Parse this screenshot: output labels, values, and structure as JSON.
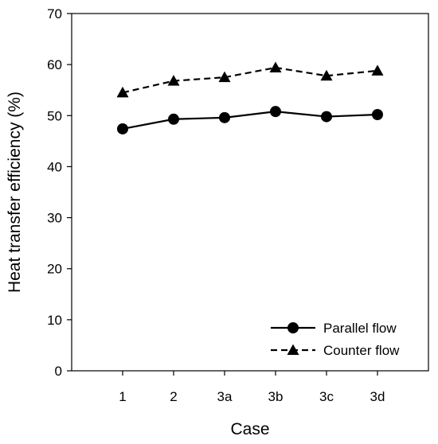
{
  "chart_data": {
    "type": "line",
    "title": "",
    "xlabel": "Case",
    "ylabel": "Heat transfer efficiency (%)",
    "categories": [
      "1",
      "2",
      "3a",
      "3b",
      "3c",
      "3d"
    ],
    "ylim": [
      0,
      70
    ],
    "yticks": [
      0,
      10,
      20,
      30,
      40,
      50,
      60,
      70
    ],
    "grid": false,
    "legend_position": "bottom-right",
    "series": [
      {
        "name": "Parallel flow",
        "values": [
          47.4,
          49.3,
          49.6,
          50.8,
          49.8,
          50.2
        ],
        "marker": "circle",
        "line_style": "solid",
        "color": "#000000"
      },
      {
        "name": "Counter flow",
        "values": [
          54.5,
          56.8,
          57.5,
          59.4,
          57.8,
          58.8
        ],
        "marker": "triangle",
        "line_style": "dashed",
        "color": "#000000"
      }
    ]
  }
}
